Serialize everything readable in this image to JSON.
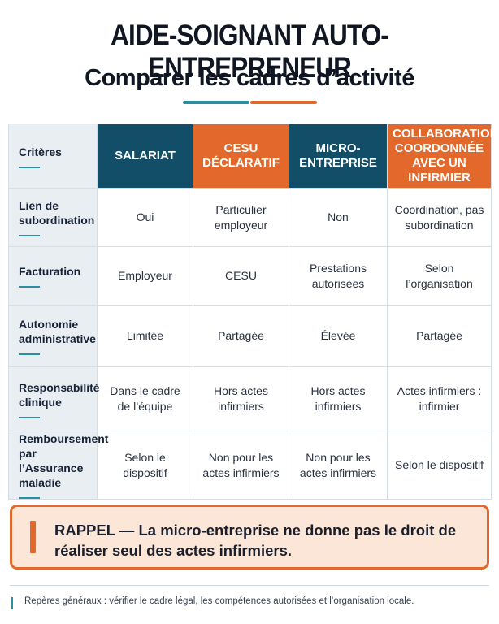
{
  "header": {
    "title": "AIDE-SOIGNANT AUTO-ENTREPRENEUR",
    "subtitle": "Comparer les cadres d’activité"
  },
  "table": {
    "criteria_header": "Critères",
    "columns": [
      {
        "label": "SALARIAT",
        "color": "#124e68"
      },
      {
        "label": "CESU DÉCLARATIF",
        "color": "#e2692b"
      },
      {
        "label": "MICRO-ENTREPRISE",
        "color": "#124e68"
      },
      {
        "label": "COLLABORATION COORDONNÉE AVEC UN INFIRMIER",
        "color": "#e2692b"
      }
    ],
    "rows": [
      {
        "criterion": "Lien de subordination",
        "values": [
          "Oui",
          "Particulier employeur",
          "Non",
          "Coordination, pas subordination"
        ]
      },
      {
        "criterion": "Facturation",
        "values": [
          "Employeur",
          "CESU",
          "Prestations autorisées",
          "Selon l’organisation"
        ]
      },
      {
        "criterion": "Autonomie administrative",
        "values": [
          "Limitée",
          "Partagée",
          "Élevée",
          "Partagée"
        ]
      },
      {
        "criterion": "Responsabilité clinique",
        "values": [
          "Dans le cadre de l’équipe",
          "Hors actes infirmiers",
          "Hors actes infirmiers",
          "Actes infirmiers : infirmier"
        ]
      },
      {
        "criterion": "Remboursement par l’Assurance maladie",
        "values": [
          "Selon le dispositif",
          "Non pour les actes infirmiers",
          "Non pour les actes infirmiers",
          "Selon le dispositif"
        ]
      }
    ]
  },
  "callout": {
    "text": "RAPPEL — La micro-entreprise ne donne pas le droit de réaliser seul des actes infirmiers."
  },
  "footer": {
    "text": "Repères généraux : vérifier le cadre légal, les compétences autorisées et l’organisation locale."
  },
  "colors": {
    "navy": "#124e68",
    "orange": "#e2692b",
    "teal": "#2a8fa0"
  }
}
